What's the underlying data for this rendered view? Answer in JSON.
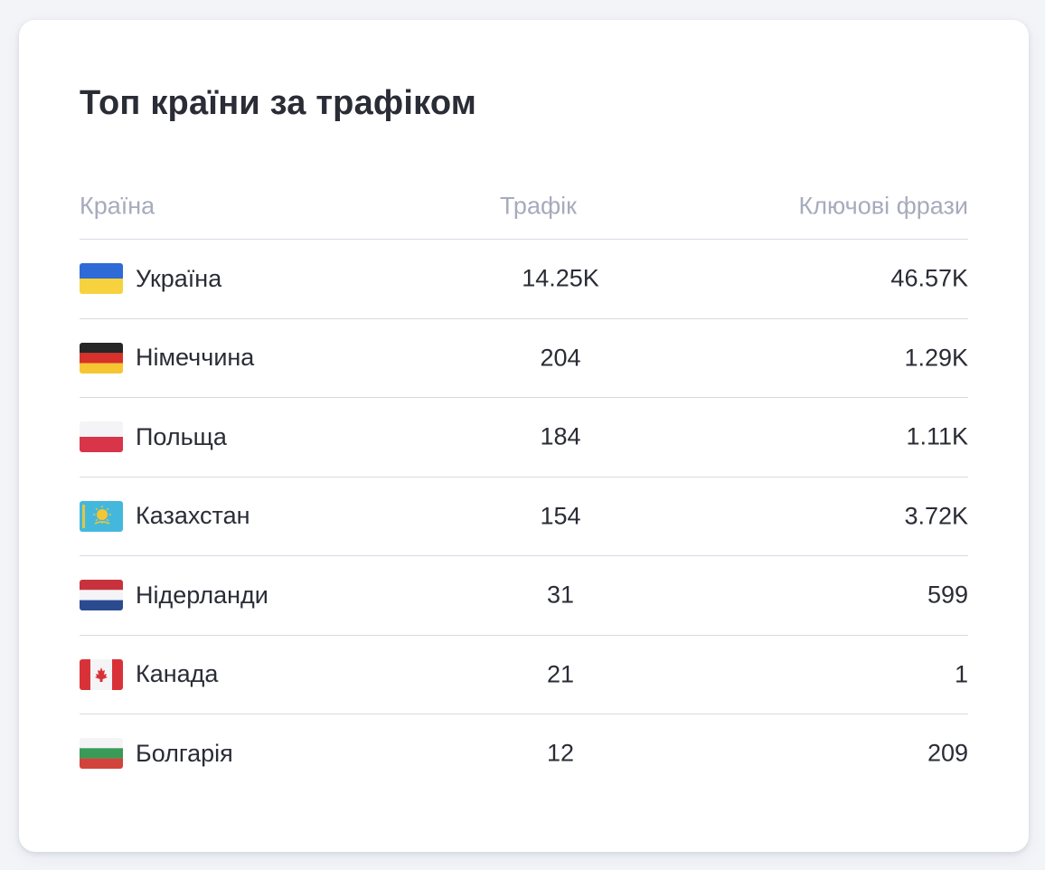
{
  "card": {
    "title": "Топ країни за трафіком"
  },
  "table": {
    "headers": {
      "country": "Країна",
      "traffic": "Трафік",
      "keywords": "Ключові фрази"
    },
    "rows": [
      {
        "flag": "flag-ukraine-icon",
        "country": "Україна",
        "traffic": "14.25K",
        "keywords": "46.57K"
      },
      {
        "flag": "flag-germany-icon",
        "country": "Німеччина",
        "traffic": "204",
        "keywords": "1.29K"
      },
      {
        "flag": "flag-poland-icon",
        "country": "Польща",
        "traffic": "184",
        "keywords": "1.11K"
      },
      {
        "flag": "flag-kazakhstan-icon",
        "country": "Казахстан",
        "traffic": "154",
        "keywords": "3.72K"
      },
      {
        "flag": "flag-netherlands-icon",
        "country": "Нідерланди",
        "traffic": "31",
        "keywords": "599"
      },
      {
        "flag": "flag-canada-icon",
        "country": "Канада",
        "traffic": "21",
        "keywords": "1"
      },
      {
        "flag": "flag-bulgaria-icon",
        "country": "Болгарія",
        "traffic": "12",
        "keywords": "209"
      }
    ]
  },
  "colors": {
    "title": "#2a2c36",
    "header_text": "#a6abbd",
    "divider": "#d7dae2",
    "background": "#f3f4f8"
  }
}
